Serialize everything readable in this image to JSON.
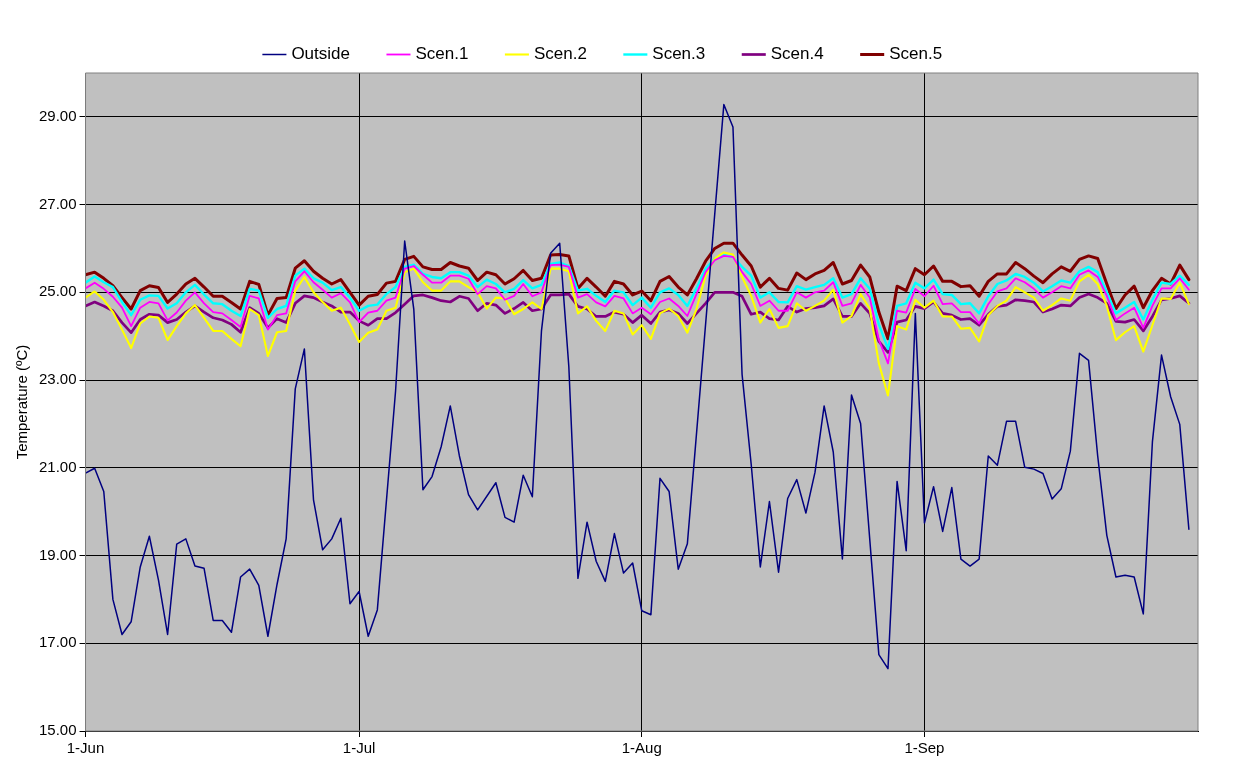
{
  "chart_data": {
    "type": "line",
    "ylabel": "Temperature (ºC)",
    "legend": "top",
    "grid": true,
    "xlim": [
      "--06-01",
      "--10-01"
    ],
    "xticks": [
      {
        "value": "--06-01",
        "label": "1-Jun"
      },
      {
        "value": "--07-01",
        "label": "1-Jul"
      },
      {
        "value": "--08-01",
        "label": "1-Aug"
      },
      {
        "value": "--09-01",
        "label": "1-Sep"
      }
    ],
    "ylim": [
      15,
      30
    ],
    "yticks": [
      {
        "value": 15,
        "label": "15.00"
      },
      {
        "value": 17,
        "label": "17.00"
      },
      {
        "value": 19,
        "label": "19.00"
      },
      {
        "value": 21,
        "label": "21.00"
      },
      {
        "value": 23,
        "label": "23.00"
      },
      {
        "value": 25,
        "label": "25.00"
      },
      {
        "value": 27,
        "label": "27.00"
      },
      {
        "value": 29,
        "label": "29.00"
      }
    ],
    "x": [
      "--06-01",
      "--06-02",
      "--06-03",
      "--06-04",
      "--06-05",
      "--06-06",
      "--06-07",
      "--06-08",
      "--06-09",
      "--06-10",
      "--06-11",
      "--06-12",
      "--06-13",
      "--06-14",
      "--06-15",
      "--06-16",
      "--06-17",
      "--06-18",
      "--06-19",
      "--06-20",
      "--06-21",
      "--06-22",
      "--06-23",
      "--06-24",
      "--06-25",
      "--06-26",
      "--06-27",
      "--06-28",
      "--06-29",
      "--06-30",
      "--07-01",
      "--07-02",
      "--07-03",
      "--07-04",
      "--07-05",
      "--07-06",
      "--07-07",
      "--07-08",
      "--07-09",
      "--07-10",
      "--07-11",
      "--07-12",
      "--07-13",
      "--07-14",
      "--07-15",
      "--07-16",
      "--07-17",
      "--07-18",
      "--07-19",
      "--07-20",
      "--07-21",
      "--07-22",
      "--07-23",
      "--07-24",
      "--07-25",
      "--07-26",
      "--07-27",
      "--07-28",
      "--07-29",
      "--07-30",
      "--07-31",
      "--08-01",
      "--08-02",
      "--08-03",
      "--08-04",
      "--08-05",
      "--08-06",
      "--08-07",
      "--08-08",
      "--08-09",
      "--08-10",
      "--08-11",
      "--08-12",
      "--08-13",
      "--08-14",
      "--08-15",
      "--08-16",
      "--08-17",
      "--08-18",
      "--08-19",
      "--08-20",
      "--08-21",
      "--08-22",
      "--08-23",
      "--08-24",
      "--08-25",
      "--08-26",
      "--08-27",
      "--08-28",
      "--08-29",
      "--08-30",
      "--08-31",
      "--09-01",
      "--09-02",
      "--09-03",
      "--09-04",
      "--09-05",
      "--09-06",
      "--09-07",
      "--09-08",
      "--09-09",
      "--09-10",
      "--09-11",
      "--09-12",
      "--09-13",
      "--09-14",
      "--09-15",
      "--09-16",
      "--09-17",
      "--09-18",
      "--09-19",
      "--09-20",
      "--09-21",
      "--09-22",
      "--09-23",
      "--09-24",
      "--09-25",
      "--09-26",
      "--09-27",
      "--09-28",
      "--09-29",
      "--09-30"
    ],
    "series": [
      {
        "name": "Outside",
        "color": "#000080",
        "x": [
          "--06-01",
          "--06-02",
          "--06-03",
          "--06-04",
          "--06-05",
          "--06-06",
          "--06-07",
          "--06-08",
          "--06-09",
          "--06-10",
          "--06-11",
          "--06-12",
          "--06-13",
          "--06-14",
          "--06-15",
          "--06-16",
          "--06-17",
          "--06-18",
          "--06-19",
          "--06-20",
          "--06-21",
          "--06-22",
          "--06-23",
          "--06-24",
          "--06-25",
          "--06-26",
          "--06-27",
          "--06-28",
          "--06-29",
          "--06-30",
          "--07-01",
          "--07-02",
          "--07-03",
          "--07-05",
          "--07-06",
          "--07-07",
          "--07-08",
          "--07-09",
          "--07-10",
          "--07-11",
          "--07-12",
          "--07-13",
          "--07-14",
          "--07-16",
          "--07-17",
          "--07-18",
          "--07-19",
          "--07-20",
          "--07-21",
          "--07-22",
          "--07-23",
          "--07-24",
          "--07-25",
          "--07-26",
          "--07-27",
          "--07-28",
          "--07-29",
          "--07-30",
          "--07-31",
          "--08-01",
          "--08-02",
          "--08-03",
          "--08-04",
          "--08-05",
          "--08-06",
          "--08-10",
          "--08-11",
          "--08-12",
          "--08-13",
          "--08-14",
          "--08-15",
          "--08-16",
          "--08-17",
          "--08-18",
          "--08-19",
          "--08-20",
          "--08-21",
          "--08-22",
          "--08-23",
          "--08-24",
          "--08-25",
          "--08-27",
          "--08-28",
          "--08-29",
          "--08-30",
          "--08-31",
          "--09-01",
          "--09-02",
          "--09-03",
          "--09-04",
          "--09-05",
          "--09-06",
          "--09-07",
          "--09-08",
          "--09-09",
          "--09-10",
          "--09-11",
          "--09-12",
          "--09-13",
          "--09-14",
          "--09-15",
          "--09-16",
          "--09-17",
          "--09-18",
          "--09-19",
          "--09-20",
          "--09-21",
          "--09-22",
          "--09-23",
          "--09-24",
          "--09-25",
          "--09-26",
          "--09-27",
          "--09-28",
          "--09-29",
          "--09-30"
        ],
        "values": [
          20.88,
          20.99,
          20.46,
          18.0,
          17.2,
          17.49,
          18.74,
          19.44,
          18.44,
          17.2,
          19.26,
          19.38,
          18.76,
          18.71,
          17.52,
          17.52,
          17.25,
          18.51,
          18.69,
          18.32,
          17.16,
          18.34,
          19.38,
          22.8,
          23.71,
          20.27,
          19.13,
          19.38,
          19.85,
          17.9,
          18.18,
          17.16,
          17.76,
          22.75,
          26.17,
          24.61,
          20.5,
          20.8,
          21.48,
          22.41,
          21.27,
          20.39,
          20.04,
          20.66,
          19.87,
          19.76,
          20.83,
          20.34,
          24.12,
          25.89,
          26.12,
          23.31,
          18.48,
          19.76,
          18.87,
          18.41,
          19.5,
          18.6,
          18.83,
          17.74,
          17.65,
          20.76,
          20.46,
          18.69,
          19.27,
          29.28,
          28.77,
          23.13,
          21.08,
          18.74,
          20.23,
          18.62,
          20.3,
          20.73,
          19.97,
          20.9,
          22.41,
          21.36,
          18.92,
          22.66,
          22.01,
          16.74,
          16.42,
          20.69,
          19.11,
          24.52,
          19.74,
          20.57,
          19.55,
          20.55,
          18.92,
          18.76,
          18.92,
          21.27,
          21.06,
          22.06,
          22.06,
          21.01,
          20.97,
          20.87,
          20.29,
          20.52,
          21.38,
          23.61,
          23.45,
          21.27,
          19.46,
          18.51,
          18.55,
          18.51,
          17.67,
          21.59,
          23.57,
          22.62,
          21.99,
          19.6
        ]
      },
      {
        "name": "Scen.1",
        "color": "#ff00ff",
        "values": [
          25.09,
          25.22,
          25.08,
          24.9,
          24.65,
          24.23,
          24.65,
          24.78,
          24.75,
          24.36,
          24.54,
          24.81,
          25.0,
          24.75,
          24.55,
          24.52,
          24.37,
          24.21,
          24.92,
          24.86,
          24.15,
          24.48,
          24.52,
          25.25,
          25.48,
          25.23,
          25.06,
          24.88,
          24.98,
          24.77,
          24.32,
          24.54,
          24.58,
          24.81,
          24.88,
          25.54,
          25.6,
          25.4,
          25.22,
          25.22,
          25.38,
          25.38,
          25.31,
          24.96,
          25.14,
          25.09,
          24.83,
          24.92,
          25.19,
          24.91,
          25.0,
          25.62,
          25.63,
          25.58,
          24.88,
          24.96,
          24.77,
          24.68,
          24.92,
          24.86,
          24.52,
          24.65,
          24.5,
          24.78,
          24.86,
          24.69,
          24.46,
          24.96,
          25.46,
          25.73,
          25.83,
          25.81,
          25.46,
          25.19,
          24.69,
          24.81,
          24.58,
          24.58,
          25.0,
          24.88,
          25.0,
          25.04,
          25.23,
          24.69,
          24.75,
          25.17,
          24.88,
          23.92,
          23.38,
          24.58,
          24.54,
          25.08,
          24.91,
          25.15,
          24.73,
          24.75,
          24.55,
          24.55,
          24.29,
          24.73,
          25.02,
          25.09,
          25.32,
          25.23,
          25.08,
          24.88,
          25.0,
          25.14,
          25.09,
          25.4,
          25.5,
          25.35,
          24.92,
          24.37,
          24.52,
          24.65,
          24.19,
          24.69,
          25.09,
          25.09,
          25.32,
          25.06
        ]
      },
      {
        "name": "Scen.2",
        "color": "#ffff00",
        "values": [
          24.88,
          25.02,
          24.83,
          24.55,
          24.15,
          23.73,
          24.29,
          24.45,
          24.42,
          23.91,
          24.23,
          24.52,
          24.71,
          24.42,
          24.12,
          24.12,
          23.94,
          23.77,
          24.62,
          24.48,
          23.55,
          24.09,
          24.12,
          25.04,
          25.35,
          25.0,
          24.78,
          24.58,
          24.65,
          24.27,
          23.87,
          24.08,
          24.15,
          24.58,
          24.65,
          25.46,
          25.54,
          25.23,
          25.04,
          25.04,
          25.25,
          25.25,
          25.12,
          25.0,
          24.63,
          24.88,
          24.86,
          24.5,
          24.62,
          24.77,
          24.62,
          25.54,
          25.54,
          25.48,
          24.52,
          24.68,
          24.35,
          24.12,
          24.58,
          24.52,
          24.04,
          24.25,
          23.94,
          24.52,
          24.63,
          24.46,
          24.08,
          24.62,
          25.38,
          25.77,
          25.91,
          25.86,
          25.35,
          24.92,
          24.31,
          24.62,
          24.19,
          24.23,
          24.75,
          24.58,
          24.69,
          24.81,
          25.06,
          24.31,
          24.46,
          24.96,
          24.63,
          23.38,
          22.65,
          24.23,
          24.15,
          24.83,
          24.65,
          24.81,
          24.45,
          24.45,
          24.17,
          24.19,
          23.88,
          24.48,
          24.69,
          24.81,
          25.12,
          25.0,
          24.88,
          24.58,
          24.71,
          24.86,
          24.81,
          25.25,
          25.4,
          25.19,
          24.69,
          23.91,
          24.09,
          24.23,
          23.65,
          24.25,
          24.86,
          24.85,
          25.22,
          24.73
        ]
      },
      {
        "name": "Scen.3",
        "color": "#00ffff",
        "values": [
          25.22,
          25.36,
          25.23,
          25.12,
          24.78,
          24.48,
          24.83,
          24.93,
          24.92,
          24.63,
          24.75,
          25.0,
          25.17,
          24.95,
          24.75,
          24.73,
          24.58,
          24.46,
          25.08,
          25.04,
          24.42,
          24.62,
          24.69,
          25.38,
          25.54,
          25.32,
          25.22,
          25.05,
          25.12,
          24.88,
          24.58,
          24.69,
          24.72,
          24.96,
          25.12,
          25.58,
          25.63,
          25.42,
          25.35,
          25.32,
          25.46,
          25.46,
          25.38,
          25.12,
          25.29,
          25.19,
          25.0,
          25.08,
          25.28,
          25.09,
          25.17,
          25.65,
          25.68,
          25.6,
          25.04,
          25.08,
          24.92,
          24.78,
          25.04,
          25.0,
          24.71,
          24.88,
          24.65,
          25.0,
          25.09,
          24.94,
          24.69,
          25.09,
          25.54,
          25.77,
          25.85,
          25.81,
          25.58,
          25.38,
          24.88,
          25.0,
          24.78,
          24.77,
          25.14,
          25.06,
          25.12,
          25.17,
          25.32,
          24.88,
          24.96,
          25.32,
          25.08,
          24.27,
          23.71,
          24.69,
          24.75,
          25.22,
          25.09,
          25.29,
          24.96,
          24.94,
          24.73,
          24.75,
          24.52,
          24.91,
          25.19,
          25.27,
          25.42,
          25.35,
          25.22,
          25.02,
          25.14,
          25.27,
          25.22,
          25.48,
          25.58,
          25.46,
          25.0,
          24.52,
          24.65,
          24.78,
          24.38,
          24.83,
          25.22,
          25.19,
          25.38,
          25.17
        ]
      },
      {
        "name": "Scen.4",
        "color": "#800080",
        "values": [
          24.69,
          24.78,
          24.69,
          24.58,
          24.31,
          24.08,
          24.38,
          24.5,
          24.48,
          24.31,
          24.38,
          24.55,
          24.69,
          24.55,
          24.42,
          24.37,
          24.27,
          24.09,
          24.65,
          24.52,
          24.19,
          24.4,
          24.31,
          24.75,
          24.92,
          24.88,
          24.78,
          24.69,
          24.55,
          24.55,
          24.35,
          24.25,
          24.4,
          24.4,
          24.54,
          24.73,
          24.92,
          24.94,
          24.88,
          24.81,
          24.78,
          24.91,
          24.86,
          24.58,
          24.75,
          24.71,
          24.52,
          24.63,
          24.77,
          24.58,
          24.62,
          24.94,
          24.94,
          24.96,
          24.68,
          24.62,
          24.45,
          24.45,
          24.55,
          24.5,
          24.31,
          24.48,
          24.29,
          24.55,
          24.6,
          24.52,
          24.29,
          24.52,
          24.75,
          25.0,
          25.0,
          25.0,
          24.91,
          24.5,
          24.55,
          24.4,
          24.37,
          24.68,
          24.55,
          24.63,
          24.65,
          24.69,
          24.85,
          24.45,
          24.45,
          24.75,
          24.52,
          23.88,
          23.63,
          24.32,
          24.37,
          24.68,
          24.63,
          24.78,
          24.52,
          24.48,
          24.38,
          24.4,
          24.25,
          24.5,
          24.68,
          24.71,
          24.83,
          24.81,
          24.78,
          24.55,
          24.62,
          24.71,
          24.69,
          24.88,
          24.96,
          24.88,
          24.75,
          24.34,
          24.32,
          24.38,
          24.12,
          24.45,
          24.83,
          24.86,
          24.92,
          24.75
        ]
      },
      {
        "name": "Scen.5",
        "color": "#800000",
        "values": [
          25.4,
          25.46,
          25.32,
          25.15,
          24.88,
          24.62,
          25.04,
          25.15,
          25.11,
          24.77,
          24.96,
          25.19,
          25.32,
          25.12,
          24.91,
          24.91,
          24.77,
          24.62,
          25.25,
          25.18,
          24.48,
          24.86,
          24.88,
          25.55,
          25.72,
          25.48,
          25.32,
          25.19,
          25.29,
          25.0,
          24.71,
          24.91,
          24.95,
          25.21,
          25.25,
          25.75,
          25.82,
          25.58,
          25.52,
          25.52,
          25.68,
          25.6,
          25.55,
          25.27,
          25.46,
          25.4,
          25.19,
          25.31,
          25.5,
          25.27,
          25.32,
          25.85,
          25.86,
          25.83,
          25.09,
          25.32,
          25.12,
          24.91,
          25.25,
          25.19,
          24.94,
          25.03,
          24.81,
          25.25,
          25.36,
          25.12,
          24.94,
          25.31,
          25.71,
          26.0,
          26.12,
          26.12,
          25.85,
          25.6,
          25.12,
          25.32,
          25.09,
          25.05,
          25.44,
          25.29,
          25.42,
          25.5,
          25.68,
          25.19,
          25.27,
          25.62,
          25.35,
          24.55,
          23.94,
          25.14,
          25.04,
          25.54,
          25.4,
          25.6,
          25.25,
          25.25,
          25.13,
          25.15,
          24.91,
          25.25,
          25.42,
          25.42,
          25.68,
          25.54,
          25.37,
          25.22,
          25.42,
          25.58,
          25.48,
          25.75,
          25.83,
          25.77,
          25.19,
          24.63,
          24.94,
          25.14,
          24.65,
          25.04,
          25.32,
          25.19,
          25.62,
          25.29
        ]
      }
    ]
  }
}
